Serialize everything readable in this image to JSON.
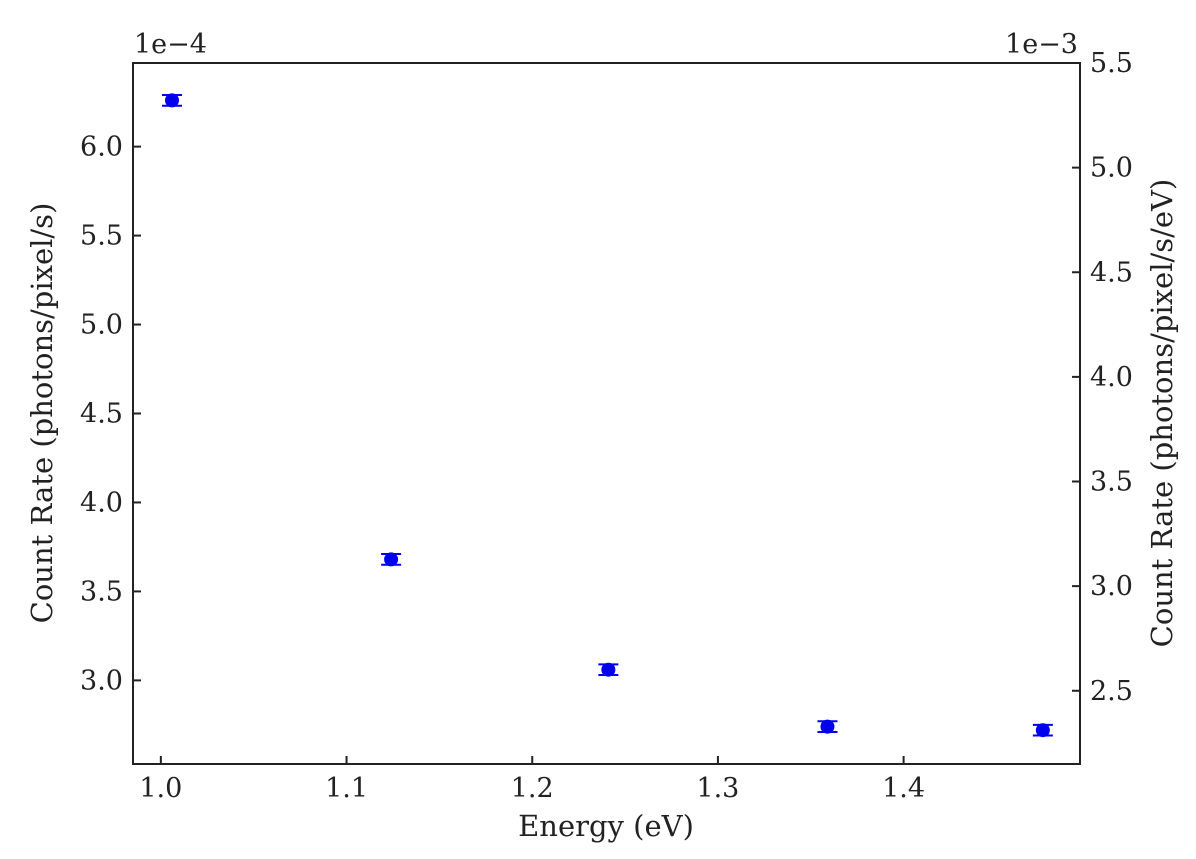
{
  "chart_data": {
    "type": "scatter",
    "title": "",
    "xlabel": "Energy (eV)",
    "ylabel": "Count Rate (photons/pixel/s)",
    "ylabel_right": "Count Rate (photons/pixel/s/eV)",
    "xlim": [
      0.985,
      1.495
    ],
    "ylim": [
      2.53,
      6.47
    ],
    "ylim_right": [
      2.15,
      5.5
    ],
    "left_offset": "1e−4",
    "right_offset": "1e−3",
    "x_ticks": [
      1.0,
      1.1,
      1.2,
      1.3,
      1.4
    ],
    "x_tick_labels": [
      "1.0",
      "1.1",
      "1.2",
      "1.3",
      "1.4"
    ],
    "y_ticks": [
      3.0,
      3.5,
      4.0,
      4.5,
      5.0,
      5.5,
      6.0
    ],
    "y_tick_labels": [
      "3.0",
      "3.5",
      "4.0",
      "4.5",
      "5.0",
      "5.5",
      "6.0"
    ],
    "y_right_ticks": [
      2.5,
      3.0,
      3.5,
      4.0,
      4.5,
      5.0,
      5.5
    ],
    "y_right_tick_labels": [
      "2.5",
      "3.0",
      "3.5",
      "4.0",
      "4.5",
      "5.0",
      "5.5"
    ],
    "grid": false,
    "marker_color": "#0000ee",
    "series": [
      {
        "x": [
          1.006,
          1.124,
          1.241,
          1.359,
          1.475
        ],
        "y": [
          6.26,
          3.68,
          3.06,
          2.74,
          2.72
        ],
        "yerr": [
          0.03,
          0.03,
          0.03,
          0.03,
          0.03
        ]
      }
    ]
  }
}
